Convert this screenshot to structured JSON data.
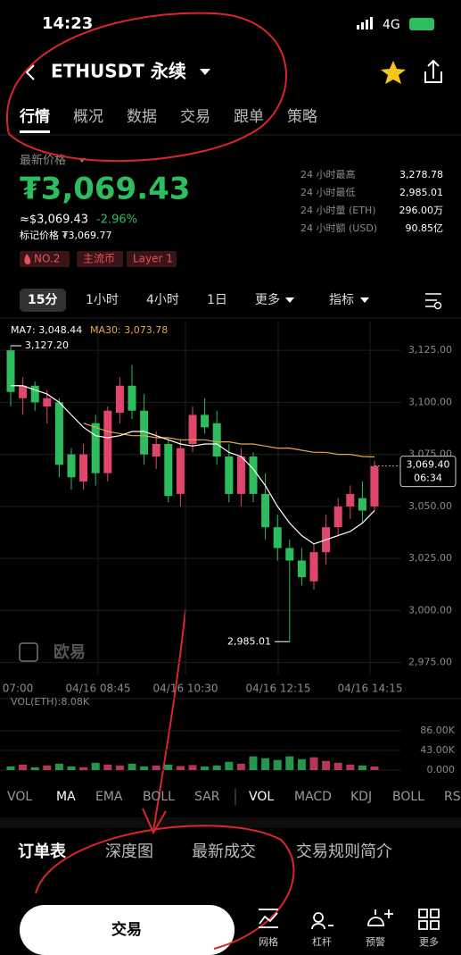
{
  "status": {
    "time": "14:23",
    "network": "4G"
  },
  "header": {
    "symbol": "ETHUSDT 永续"
  },
  "tabs": [
    "行情",
    "概况",
    "数据",
    "交易",
    "跟单",
    "策略"
  ],
  "price": {
    "label": "最新价格",
    "last": "₮3,069.43",
    "usd": "≈$3,069.43",
    "change": "-2.96%",
    "mark": "标记价格 ₮3,069.77"
  },
  "stats": [
    [
      "24 小时最高",
      "3,278.78"
    ],
    [
      "24 小时最低",
      "2,985.01"
    ],
    [
      "24 小时量 (ETH)",
      "296.00万"
    ],
    [
      "24 小时额 (USD)",
      "90.85亿"
    ]
  ],
  "tags": [
    "NO.2",
    "主流币",
    "Layer 1"
  ],
  "intervals": [
    "15分",
    "1小时",
    "4小时",
    "1日",
    "更多",
    "指标"
  ],
  "chart": {
    "ma7_label": "MA7: 3,048.44",
    "ma30_label": "MA30: 3,073.78",
    "ylim": [
      2971.4,
      3138.8
    ],
    "yticks": [
      {
        "value": 3125,
        "label": "3,125.00"
      },
      {
        "value": 3100,
        "label": "3,100.00"
      },
      {
        "value": 3075,
        "label": "3,075.00"
      },
      {
        "value": 3050,
        "label": "3,050.00"
      },
      {
        "value": 3025,
        "label": "3,025.00"
      },
      {
        "value": 3000,
        "label": "3,000.00"
      },
      {
        "value": 2975,
        "label": "2,975.00"
      }
    ],
    "times": [
      "07:00",
      "04/16 08:45",
      "04/16 10:30",
      "04/16 12:15",
      "04/16 14:15"
    ],
    "up_color": "#e0456b",
    "down_color": "#2dbd5f",
    "candles": [
      [
        3125,
        3127.2,
        3098,
        3105
      ],
      [
        3102,
        3112,
        3094,
        3108
      ],
      [
        3108,
        3110,
        3096,
        3100
      ],
      [
        3098,
        3106,
        3090,
        3102
      ],
      [
        3100,
        3102,
        3064,
        3070
      ],
      [
        3075,
        3078,
        3058,
        3064
      ],
      [
        3062,
        3080,
        3058,
        3075
      ],
      [
        3090,
        3094,
        3060,
        3066
      ],
      [
        3066,
        3098,
        3062,
        3096
      ],
      [
        3095,
        3112,
        3090,
        3108
      ],
      [
        3108,
        3118,
        3092,
        3096
      ],
      [
        3096,
        3104,
        3070,
        3075
      ],
      [
        3074,
        3086,
        3068,
        3080
      ],
      [
        3080,
        3082,
        3052,
        3055
      ],
      [
        3056,
        3082,
        3050,
        3078
      ],
      [
        3080,
        3098,
        3076,
        3094
      ],
      [
        3094,
        3102,
        3085,
        3088
      ],
      [
        3090,
        3096,
        3070,
        3074
      ],
      [
        3074,
        3080,
        3052,
        3056
      ],
      [
        3056,
        3078,
        3050,
        3074
      ],
      [
        3074,
        3076,
        3052,
        3056
      ],
      [
        3056,
        3066,
        3034,
        3040
      ],
      [
        3040,
        3046,
        3024,
        3030
      ],
      [
        3030,
        3034,
        2985.01,
        3024
      ],
      [
        3024,
        3030,
        3012,
        3016
      ],
      [
        3014,
        3032,
        3010,
        3028
      ],
      [
        3028,
        3046,
        3022,
        3040
      ],
      [
        3040,
        3054,
        3036,
        3050
      ],
      [
        3050,
        3060,
        3044,
        3056
      ],
      [
        3054,
        3062,
        3042,
        3048
      ],
      [
        3050,
        3072,
        3048,
        3069.4
      ]
    ],
    "ma7": [
      3108,
      3108,
      3106,
      3104,
      3100,
      3094,
      3088,
      3084,
      3083,
      3084,
      3086,
      3086,
      3084,
      3082,
      3080,
      3079,
      3080,
      3080,
      3076,
      3074,
      3068,
      3060,
      3050,
      3042,
      3036,
      3032,
      3034,
      3036,
      3038,
      3042,
      3048
    ],
    "ma30": [
      null,
      null,
      null,
      null,
      null,
      null,
      3090,
      3088,
      3086,
      3085,
      3084,
      3084,
      3083,
      3083,
      3082,
      3082,
      3082,
      3081,
      3081,
      3080,
      3080,
      3079,
      3078,
      3078,
      3077,
      3076,
      3076,
      3075,
      3075,
      3074,
      3073.78
    ],
    "high_label": "3,127.20",
    "low_label": "2,985.01",
    "last_price": "3,069.40",
    "countdown": "06:34",
    "watermark": "欧易"
  },
  "volume": {
    "label": "VOL(ETH):8.08K",
    "ylim": [
      0,
      90
    ],
    "yticks": [
      {
        "value": 0,
        "label": "0.000"
      },
      {
        "value": 43,
        "label": "43.00K"
      },
      {
        "value": 86,
        "label": "86.00K"
      }
    ],
    "values": [
      8,
      12,
      6,
      10,
      14,
      8,
      6,
      16,
      12,
      10,
      14,
      8,
      10,
      12,
      9,
      11,
      8,
      10,
      18,
      14,
      30,
      26,
      22,
      30,
      24,
      28,
      20,
      16,
      12,
      10,
      8
    ]
  },
  "indicators": [
    "VOL",
    "MA",
    "EMA",
    "BOLL",
    "SAR",
    "VOL",
    "MACD",
    "KDJ",
    "BOLL",
    "RS"
  ],
  "bottom_tabs": [
    "订单表",
    "深度图",
    "最新成交",
    "交易规则简介"
  ],
  "nav": {
    "trade": "交易",
    "items": [
      "网格",
      "杠杆",
      "预警",
      "更多"
    ]
  }
}
